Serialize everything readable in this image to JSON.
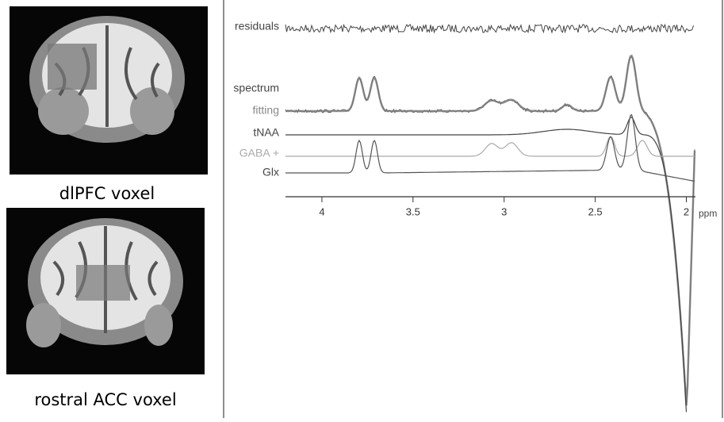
{
  "panels": [
    {
      "label": "dlPFC voxel"
    },
    {
      "label": "rostral ACC voxel"
    }
  ],
  "spectrum": {
    "trace_labels": [
      "residuals",
      "spectrum",
      "fitting",
      "tNAA",
      "GABA +",
      "Glx"
    ],
    "x_axis": {
      "lim": [
        4.2,
        1.95
      ],
      "ticks": [
        4,
        3.5,
        3,
        2.5,
        2
      ],
      "unit": "ppm"
    }
  }
}
